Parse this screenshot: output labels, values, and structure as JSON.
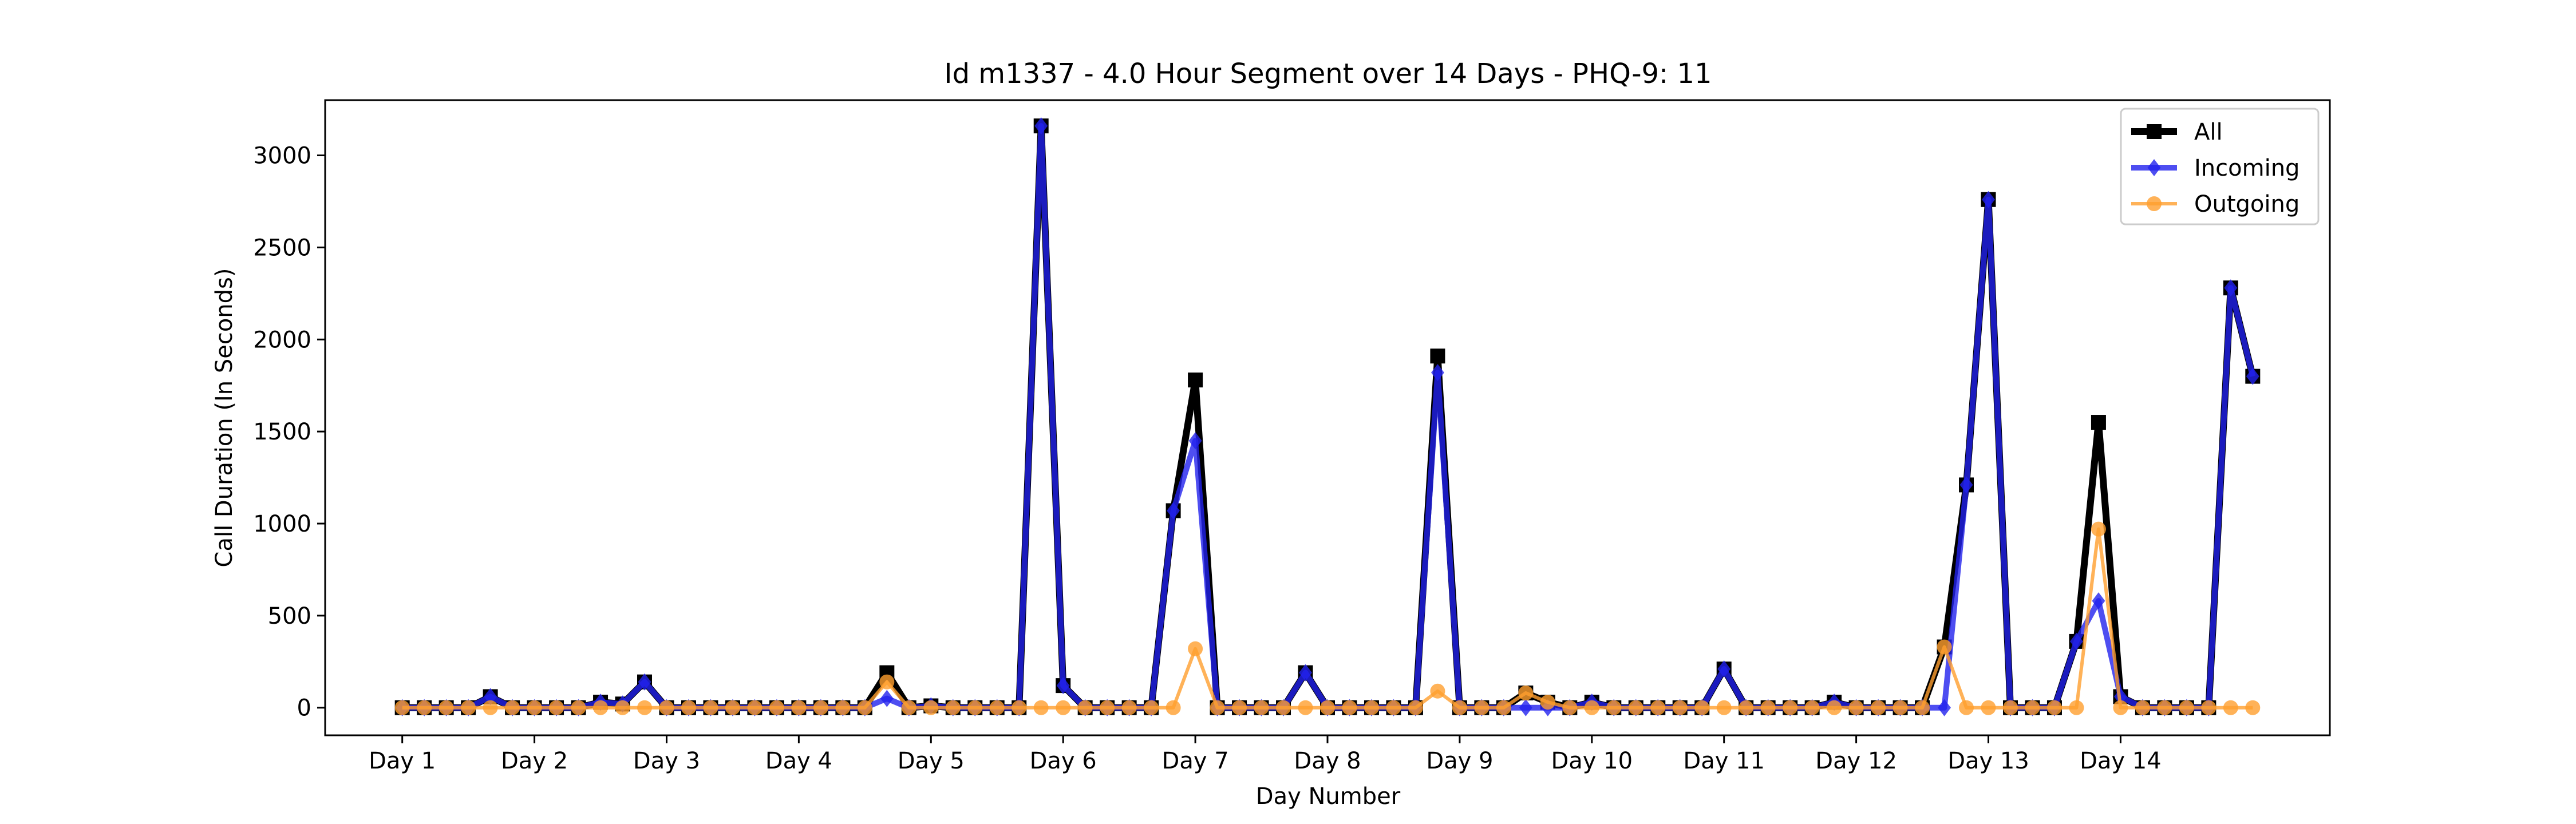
{
  "chart_data": {
    "type": "line",
    "title": "Id m1337 - 4.0 Hour Segment over 14 Days - PHQ-9: 11",
    "xlabel": "Day Number",
    "ylabel": "Call Duration (In Seconds)",
    "ylim": [
      -150,
      3300
    ],
    "xlim": [
      -3.5,
      87.5
    ],
    "yticks": [
      0,
      500,
      1000,
      1500,
      2000,
      2500,
      3000
    ],
    "xtick_positions": [
      0,
      6,
      12,
      18,
      24,
      30,
      36,
      42,
      48,
      54,
      60,
      66,
      72,
      78
    ],
    "xtick_labels": [
      "Day 1",
      "Day 2",
      "Day 3",
      "Day 4",
      "Day 5",
      "Day 6",
      "Day 7",
      "Day 8",
      "Day 9",
      "Day 10",
      "Day 11",
      "Day 12",
      "Day 13",
      "Day 14"
    ],
    "grid": false,
    "legend_position": "top-right",
    "series": [
      {
        "name": "All",
        "color": "#000000",
        "marker": "square",
        "values": [
          0,
          0,
          0,
          0,
          60,
          0,
          0,
          0,
          0,
          30,
          20,
          140,
          0,
          0,
          0,
          0,
          0,
          0,
          0,
          0,
          0,
          0,
          190,
          0,
          10,
          0,
          0,
          0,
          0,
          3160,
          120,
          0,
          0,
          0,
          0,
          1070,
          1780,
          0,
          0,
          0,
          0,
          190,
          0,
          0,
          0,
          0,
          0,
          1910,
          0,
          0,
          0,
          80,
          30,
          0,
          30,
          0,
          0,
          0,
          0,
          0,
          210,
          0,
          0,
          0,
          0,
          30,
          0,
          0,
          0,
          0,
          330,
          1210,
          2760,
          0,
          0,
          0,
          360,
          1550,
          60,
          0,
          0,
          0,
          0,
          2280,
          1800
        ]
      },
      {
        "name": "Incoming",
        "color": "#2222ee",
        "marker": "diamond",
        "values": [
          0,
          0,
          0,
          0,
          60,
          0,
          0,
          0,
          0,
          30,
          20,
          140,
          0,
          0,
          0,
          0,
          0,
          0,
          0,
          0,
          0,
          0,
          50,
          0,
          10,
          0,
          0,
          0,
          0,
          3160,
          120,
          0,
          0,
          0,
          0,
          1070,
          1450,
          0,
          0,
          0,
          0,
          190,
          0,
          0,
          0,
          0,
          0,
          1820,
          0,
          0,
          0,
          0,
          0,
          0,
          30,
          0,
          0,
          0,
          0,
          0,
          210,
          0,
          0,
          0,
          0,
          30,
          0,
          0,
          0,
          0,
          0,
          1210,
          2760,
          0,
          0,
          0,
          360,
          580,
          60,
          0,
          0,
          0,
          0,
          2280,
          1800
        ]
      },
      {
        "name": "Outgoing",
        "color": "#ff9f2e",
        "marker": "circle",
        "values": [
          0,
          0,
          0,
          0,
          0,
          0,
          0,
          0,
          0,
          0,
          0,
          0,
          0,
          0,
          0,
          0,
          0,
          0,
          0,
          0,
          0,
          0,
          140,
          0,
          0,
          0,
          0,
          0,
          0,
          0,
          0,
          0,
          0,
          0,
          0,
          0,
          320,
          0,
          0,
          0,
          0,
          0,
          0,
          0,
          0,
          0,
          0,
          90,
          0,
          0,
          0,
          80,
          30,
          0,
          0,
          0,
          0,
          0,
          0,
          0,
          0,
          0,
          0,
          0,
          0,
          0,
          0,
          0,
          0,
          0,
          330,
          0,
          0,
          0,
          0,
          0,
          0,
          970,
          0,
          0,
          0,
          0,
          0,
          0,
          0
        ]
      }
    ]
  }
}
